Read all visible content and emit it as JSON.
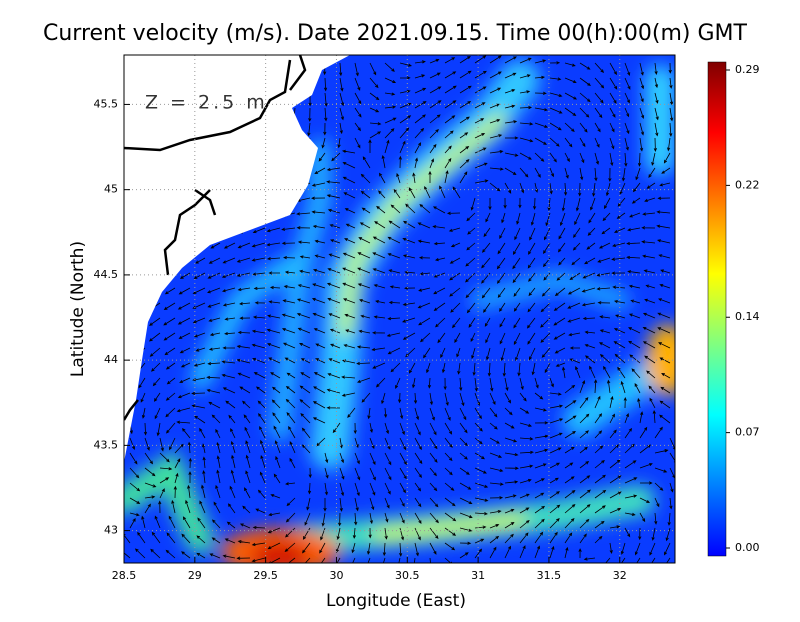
{
  "chart_data": {
    "type": "vector-field",
    "title": "Current velocity (m/s). Date 2021.09.15. Time 00(h):00(m) GMT",
    "depth_label": "Z = 2.5 m",
    "x_label": "Longitude (East)",
    "y_label": "Latitude (North)",
    "xlim": [
      28.5,
      32.39
    ],
    "ylim": [
      42.81,
      45.79
    ],
    "xticks": [
      28.5,
      29,
      29.5,
      30,
      30.5,
      31,
      31.5,
      32
    ],
    "yticks": [
      43,
      43.5,
      44,
      44.5,
      45,
      45.5
    ],
    "grid": true,
    "colorbar": {
      "lim": [
        0,
        0.29
      ],
      "ticks": [
        {
          "value": 0,
          "label": "0.00"
        },
        0.07,
        0.14,
        0.22,
        0.29
      ],
      "colors": [
        "#0000ff",
        "#0080ff",
        "#00ffff",
        "#80ff80",
        "#ffff00",
        "#ff8000",
        "#ff0000",
        "#800000"
      ]
    }
  }
}
